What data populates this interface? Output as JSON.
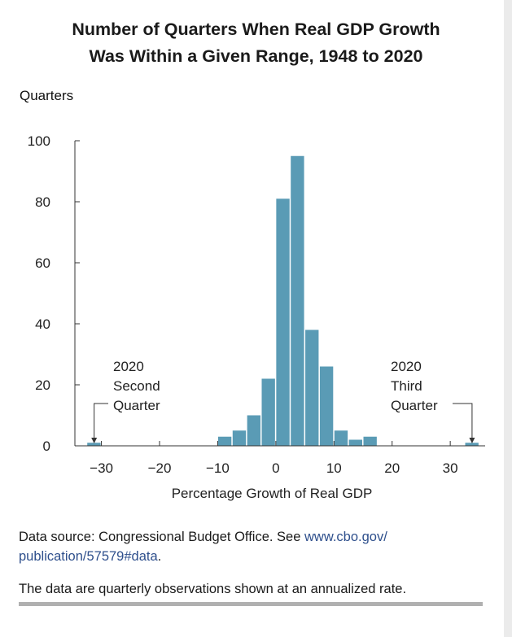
{
  "title_lines": [
    "Number of Quarters When Real GDP Growth",
    "Was Within a Given Range, 1948 to 2020"
  ],
  "chart_data": {
    "type": "bar",
    "title": "Number of Quarters When Real GDP Growth Was Within a Given Range, 1948 to 2020",
    "ylabel": "Quarters",
    "xlabel": "Percentage Growth of Real GDP",
    "ylim": [
      0,
      100
    ],
    "xlim": [
      -34,
      36
    ],
    "yticks": [
      0,
      20,
      40,
      60,
      80,
      100
    ],
    "xticks": [
      -30,
      -20,
      -10,
      0,
      10,
      20,
      30
    ],
    "xtick_labels": [
      "−30",
      "−20",
      "−10",
      "0",
      "10",
      "20",
      "30"
    ],
    "bin_width": 2.5,
    "bins": [
      {
        "start": -32.5,
        "value": 1
      },
      {
        "start": -10,
        "value": 3
      },
      {
        "start": -7.5,
        "value": 5
      },
      {
        "start": -5,
        "value": 10
      },
      {
        "start": -2.5,
        "value": 22
      },
      {
        "start": 0,
        "value": 81
      },
      {
        "start": 2.5,
        "value": 95
      },
      {
        "start": 5,
        "value": 38
      },
      {
        "start": 7.5,
        "value": 26
      },
      {
        "start": 10,
        "value": 5
      },
      {
        "start": 12.5,
        "value": 2
      },
      {
        "start": 15,
        "value": 3
      },
      {
        "start": 32.5,
        "value": 1
      }
    ],
    "bar_color": "#5a9bb5",
    "grid": false,
    "annotations": [
      {
        "lines": [
          "2020",
          "Second",
          "Quarter"
        ],
        "x": -31.25
      },
      {
        "lines": [
          "2020",
          "Third",
          "Quarter"
        ],
        "x": 33.75
      }
    ]
  },
  "source": {
    "prefix": "Data source: Congressional Budget Office. See ",
    "link": "www.cbo.gov/​publication/57579#data",
    "suffix": "."
  },
  "note": "The data are quarterly observations shown at an annualized rate."
}
